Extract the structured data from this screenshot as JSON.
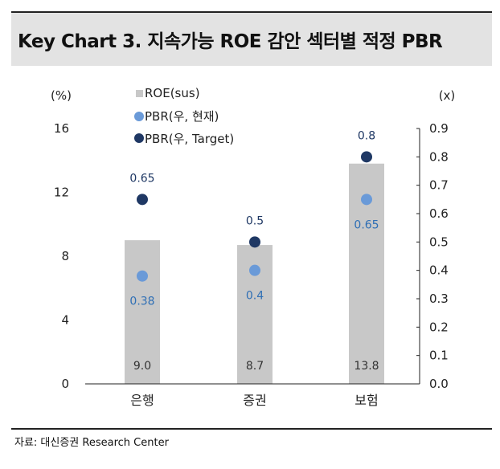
{
  "title": "Key Chart 3. 지속가능 ROE 감안 섹터별 적정 PBR",
  "source": "자료: 대신증권 Research Center",
  "colors": {
    "bar": "#c8c8c8",
    "pbr_current": "#6a9ad8",
    "pbr_target": "#1f3864",
    "axis": "#222222",
    "title_bg": "#e3e3e3"
  },
  "chart_data": {
    "type": "bar",
    "categories": [
      "은행",
      "증권",
      "보험"
    ],
    "left_axis": {
      "unit_label": "(%)",
      "min": 0,
      "max": 16,
      "ticks": [
        0,
        4,
        8,
        12,
        16
      ]
    },
    "right_axis": {
      "unit_label": "(x)",
      "min": 0,
      "max": 0.9,
      "ticks": [
        0.0,
        0.1,
        0.2,
        0.3,
        0.4,
        0.5,
        0.6,
        0.7,
        0.8,
        0.9
      ],
      "tick_labels": [
        "0.0",
        "0.1",
        "0.2",
        "0.3",
        "0.4",
        "0.5",
        "0.6",
        "0.7",
        "0.8",
        "0.9"
      ]
    },
    "series": [
      {
        "name": "ROE(sus)",
        "kind": "bar",
        "axis": "left",
        "values": [
          9.0,
          8.7,
          13.8
        ],
        "labels": [
          "9.0",
          "8.7",
          "13.8"
        ]
      },
      {
        "name": "PBR(우, 현재)",
        "kind": "scatter",
        "axis": "right",
        "values": [
          0.38,
          0.4,
          0.65
        ],
        "labels": [
          "0.38",
          "0.4",
          "0.65"
        ]
      },
      {
        "name": "PBR(우, Target)",
        "kind": "scatter",
        "axis": "right",
        "values": [
          0.65,
          0.5,
          0.8
        ],
        "labels": [
          "0.65",
          "0.5",
          "0.8"
        ]
      }
    ],
    "legend_position": "top-left"
  }
}
